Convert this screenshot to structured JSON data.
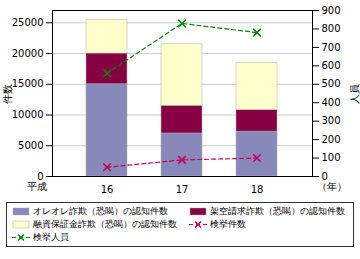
{
  "chart_data": {
    "type": "bar",
    "stacked": true,
    "categories": [
      "16",
      "17",
      "18"
    ],
    "ylabel": "件数",
    "y2label": "人員",
    "annotations": [
      "平成",
      "（年）"
    ],
    "ylim": [
      0,
      27000
    ],
    "yticks": [
      0,
      5000,
      10000,
      15000,
      20000,
      25000
    ],
    "y2lim": [
      0,
      900
    ],
    "y2ticks": [
      0,
      100,
      200,
      300,
      400,
      500,
      600,
      700,
      800,
      900
    ],
    "grid": true,
    "legend": "bottom",
    "series": [
      {
        "name": "オレオレ詐欺（恐喝）の認知件数",
        "color": "#8888bb",
        "values": [
          15000,
          7000,
          7300
        ]
      },
      {
        "name": "架空請求詐欺（恐喝）の認知件数",
        "color": "#880044",
        "values": [
          5000,
          4500,
          3500
        ]
      },
      {
        "name": "融資保証金詐欺（恐喝）の認知件数",
        "color": "#ffffcc",
        "values": [
          5500,
          10000,
          7700
        ]
      },
      {
        "name": "検挙件数",
        "type": "line",
        "axis": "y2",
        "color": "#cc0055",
        "marker": "x",
        "line_style": "dashed",
        "values": [
          50,
          90,
          100
        ]
      },
      {
        "name": "検挙人員",
        "type": "line",
        "axis": "y2",
        "color": "#008800",
        "marker": "x",
        "line_style": "dashed",
        "values": [
          560,
          830,
          780
        ]
      }
    ]
  }
}
